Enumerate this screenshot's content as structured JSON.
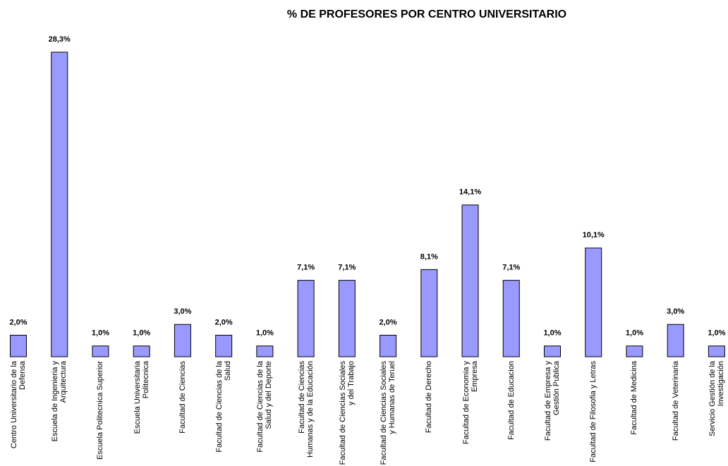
{
  "chart_data": {
    "type": "bar",
    "title": "% DE PROFESORES POR CENTRO UNIVERSITARIO",
    "categories": [
      "Centro Universitario de la Defensa",
      "Escuela de Ingenieria y Arquitectura",
      "Escuela Politecnica Superior",
      "Escuela Universitaria Politecnica",
      "Facultad de Ciencias",
      "Facultad de Ciencias de la Salud",
      "Facultad de Ciencias de la Salud y del Deporte",
      "Facultad de Ciencias Humanas y de la Educación",
      "Facultad de Ciencias Sociales y del Trabajo",
      "Facultad de Ciencias Sociales y Humanas de Teruel",
      "Facultad de Derecho",
      "Facultad de Economia y Empresa",
      "Facultad de Educacion",
      "Facultad de Empresa y Gestión Publica",
      "Facultad de Filosofia y Letras",
      "Facultad de Medicina",
      "Facultad de Veterinaria",
      "Servicio Gestión de la Investigación"
    ],
    "values": [
      2.0,
      28.3,
      1.0,
      1.0,
      3.0,
      2.0,
      1.0,
      7.1,
      7.1,
      2.0,
      8.1,
      14.1,
      7.1,
      1.0,
      10.1,
      1.0,
      3.0,
      1.0
    ],
    "value_labels": [
      "2,0%",
      "28,3%",
      "1,0%",
      "1,0%",
      "3,0%",
      "2,0%",
      "1,0%",
      "7,1%",
      "7,1%",
      "2,0%",
      "8,1%",
      "14,1%",
      "7,1%",
      "1,0%",
      "10,1%",
      "1,0%",
      "3,0%",
      "1,0%"
    ],
    "color": "#9999ff"
  }
}
